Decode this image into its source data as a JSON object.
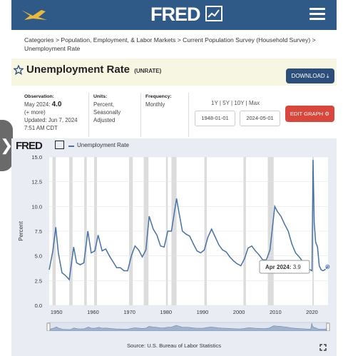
{
  "header": {
    "brand": "FRED",
    "colors": {
      "topbar": "#2f5a88",
      "accent": "#d9473c",
      "download": "#2c4e7a",
      "series": "#4572a7"
    }
  },
  "breadcrumb": {
    "text": "Categories > Population, Employment, & Labor Markets > Current Population Survey (Household Survey) > Unemployment Rate"
  },
  "series": {
    "title": "Unemployment Rate",
    "id": "(UNRATE)"
  },
  "buttons": {
    "download": "DOWNLOAD",
    "edit_graph": "EDIT GRAPH"
  },
  "meta": {
    "observation_label": "Observation:",
    "observation_date": "May 2024:",
    "observation_value": "4.0",
    "more": "(+ more)",
    "updated": "Updated: Jun 7, 2024",
    "updated_time": "7:51 AM CDT",
    "units_label": "Units:",
    "units_value": "Percent, Seasonally Adjusted",
    "frequency_label": "Frequency:",
    "frequency_value": "Monthly"
  },
  "range": {
    "links": [
      "1Y",
      "5Y",
      "10Y",
      "Max"
    ],
    "start": "1948-01-01",
    "end": "2024-05-01"
  },
  "chart_data": {
    "type": "line",
    "brand": "FRED",
    "legend": [
      "Unemployment Rate"
    ],
    "ylabel": "Percent",
    "xlabel": "",
    "ylim": [
      0,
      15
    ],
    "xlim": [
      1948,
      2024.4
    ],
    "yticks": [
      "0.0",
      "2.5",
      "5.0",
      "7.5",
      "10.0",
      "12.5",
      "15.0"
    ],
    "xticks": [
      "1950",
      "1960",
      "1970",
      "1980",
      "1990",
      "2000",
      "2010",
      "2020"
    ],
    "tooltip": {
      "label": "Apr 2024:",
      "value": "3.9"
    },
    "recessions": [
      [
        1948.9,
        1949.8
      ],
      [
        1953.5,
        1954.4
      ],
      [
        1957.6,
        1958.3
      ],
      [
        1960.3,
        1961.1
      ],
      [
        1969.9,
        1970.9
      ],
      [
        1973.9,
        1975.2
      ],
      [
        1980.0,
        1980.5
      ],
      [
        1981.5,
        1982.9
      ],
      [
        1990.5,
        1991.2
      ],
      [
        2001.2,
        2001.9
      ],
      [
        2007.9,
        2009.5
      ],
      [
        2020.1,
        2020.3
      ]
    ],
    "series": [
      {
        "name": "Unemployment Rate",
        "x": [
          1948.0,
          1949.0,
          1949.8,
          1950.5,
          1951.5,
          1952.5,
          1953.5,
          1954.7,
          1955.5,
          1956.5,
          1957.5,
          1958.6,
          1959.5,
          1960.5,
          1961.4,
          1962.5,
          1963.5,
          1964.5,
          1965.5,
          1966.5,
          1967.5,
          1968.5,
          1969.5,
          1970.5,
          1971.5,
          1972.5,
          1973.5,
          1974.5,
          1975.4,
          1976.5,
          1977.5,
          1978.5,
          1979.5,
          1980.5,
          1981.5,
          1982.9,
          1983.5,
          1984.5,
          1985.5,
          1986.5,
          1987.5,
          1988.5,
          1989.5,
          1990.5,
          1991.5,
          1992.5,
          1993.5,
          1994.5,
          1995.5,
          1996.5,
          1997.5,
          1998.5,
          1999.5,
          2000.5,
          2001.5,
          2002.5,
          2003.5,
          2004.5,
          2005.5,
          2006.5,
          2007.5,
          2008.5,
          2009.8,
          2010.5,
          2011.5,
          2012.5,
          2013.5,
          2014.5,
          2015.5,
          2016.5,
          2017.5,
          2018.5,
          2019.5,
          2020.0,
          2020.3,
          2020.6,
          2021.0,
          2021.5,
          2022.0,
          2022.5,
          2023.0,
          2023.5,
          2024.3
        ],
        "values": [
          3.6,
          5.5,
          7.9,
          5.3,
          3.3,
          3.0,
          2.6,
          5.9,
          4.3,
          4.1,
          4.3,
          7.5,
          5.3,
          5.5,
          7.1,
          5.5,
          5.7,
          5.0,
          4.4,
          3.8,
          3.8,
          3.5,
          3.5,
          5.0,
          6.0,
          5.6,
          4.9,
          5.6,
          9.0,
          7.7,
          7.1,
          6.0,
          5.9,
          7.5,
          7.5,
          10.8,
          9.5,
          7.5,
          7.2,
          7.0,
          6.2,
          5.5,
          5.3,
          5.6,
          6.9,
          7.7,
          6.9,
          6.1,
          5.6,
          5.4,
          4.9,
          4.5,
          4.2,
          4.0,
          4.7,
          5.8,
          6.0,
          5.5,
          5.1,
          4.6,
          4.6,
          5.6,
          10.0,
          9.5,
          9.0,
          8.2,
          7.5,
          6.2,
          5.3,
          4.9,
          4.4,
          3.9,
          3.6,
          3.5,
          14.7,
          8.4,
          6.4,
          5.9,
          4.0,
          3.6,
          3.5,
          3.6,
          3.9
        ]
      }
    ]
  },
  "source": {
    "text": "Source: U.S. Bureau of Labor Statistics"
  }
}
